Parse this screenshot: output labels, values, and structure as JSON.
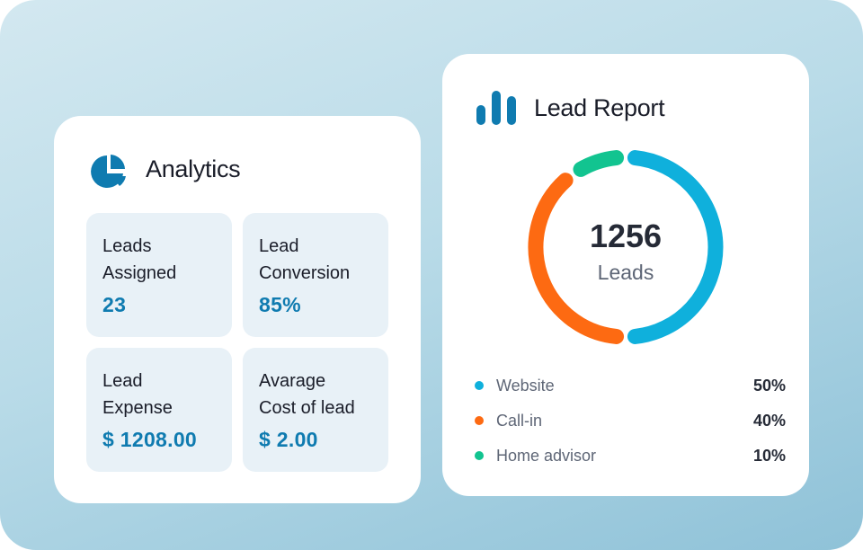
{
  "analytics": {
    "title": "Analytics",
    "icon": "pie-chart-icon",
    "tiles": [
      {
        "label": "Leads\nAssigned",
        "value": "23"
      },
      {
        "label": "Lead\nConversion",
        "value": "85%"
      },
      {
        "label": "Lead\nExpense",
        "value": "$ 1208.00"
      },
      {
        "label": "Avarage\nCost of lead",
        "value": "$ 2.00"
      }
    ]
  },
  "report": {
    "title": "Lead Report",
    "icon": "bar-chart-icon",
    "total": "1256",
    "total_label": "Leads",
    "segments": [
      {
        "name": "Website",
        "percent": "50%",
        "value": 50,
        "color": "#0fb0dc"
      },
      {
        "name": "Call-in",
        "percent": "40%",
        "value": 40,
        "color": "#fd6a12"
      },
      {
        "name": "Home advisor",
        "percent": "10%",
        "value": 10,
        "color": "#12c490"
      }
    ]
  },
  "colors": {
    "accent": "#0f7bb0"
  }
}
